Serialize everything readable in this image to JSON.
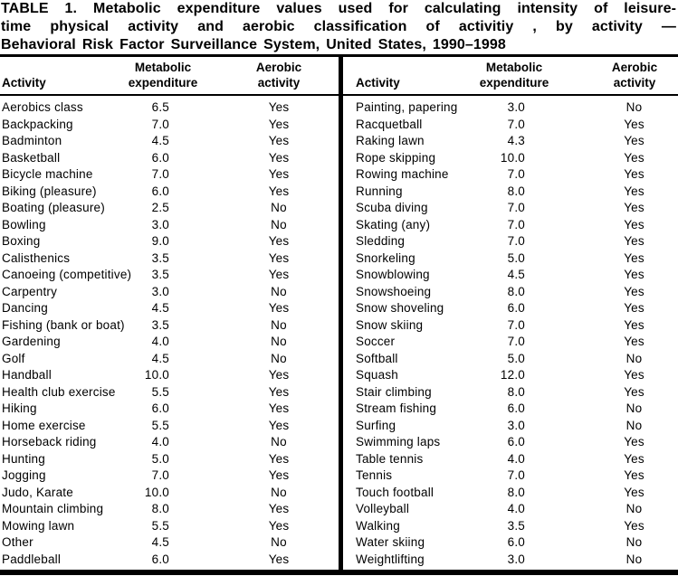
{
  "title": {
    "line1": "TABLE 1. Metabolic expenditure values used for calculating intensity of leisure-",
    "line2": "time physical activity and aerobic classification of activitiy , by activity —",
    "line3": "Behavioral Risk Factor Surveillance System, United States, 1990–1998"
  },
  "colors": {
    "text": "#000000",
    "background": "#ffffff",
    "rules": "#000000"
  },
  "table": {
    "header_activity": "Activity",
    "header_metabolic": "Metabolic expenditure",
    "header_aerobic": "Aerobic activity",
    "left_rows": [
      {
        "activity": "Aerobics class",
        "metabolic": "6.5",
        "aerobic": "Yes"
      },
      {
        "activity": "Backpacking",
        "metabolic": "7.0",
        "aerobic": "Yes"
      },
      {
        "activity": "Badminton",
        "metabolic": "4.5",
        "aerobic": "Yes"
      },
      {
        "activity": "Basketball",
        "metabolic": "6.0",
        "aerobic": "Yes"
      },
      {
        "activity": "Bicycle machine",
        "metabolic": "7.0",
        "aerobic": "Yes"
      },
      {
        "activity": "Biking (pleasure)",
        "metabolic": "6.0",
        "aerobic": "Yes"
      },
      {
        "activity": "Boating (pleasure)",
        "metabolic": "2.5",
        "aerobic": "No"
      },
      {
        "activity": "Bowling",
        "metabolic": "3.0",
        "aerobic": "No"
      },
      {
        "activity": "Boxing",
        "metabolic": "9.0",
        "aerobic": "Yes"
      },
      {
        "activity": "Calisthenics",
        "metabolic": "3.5",
        "aerobic": "Yes"
      },
      {
        "activity": "Canoeing (competitive)",
        "metabolic": "3.5",
        "aerobic": "Yes"
      },
      {
        "activity": "Carpentry",
        "metabolic": "3.0",
        "aerobic": "No"
      },
      {
        "activity": "Dancing",
        "metabolic": "4.5",
        "aerobic": "Yes"
      },
      {
        "activity": "Fishing (bank or boat)",
        "metabolic": "3.5",
        "aerobic": "No"
      },
      {
        "activity": "Gardening",
        "metabolic": "4.0",
        "aerobic": "No"
      },
      {
        "activity": "Golf",
        "metabolic": "4.5",
        "aerobic": "No"
      },
      {
        "activity": "Handball",
        "metabolic": "10.0",
        "aerobic": "Yes"
      },
      {
        "activity": "Health club exercise",
        "metabolic": "5.5",
        "aerobic": "Yes"
      },
      {
        "activity": "Hiking",
        "metabolic": "6.0",
        "aerobic": "Yes"
      },
      {
        "activity": "Home exercise",
        "metabolic": "5.5",
        "aerobic": "Yes"
      },
      {
        "activity": "Horseback riding",
        "metabolic": "4.0",
        "aerobic": "No"
      },
      {
        "activity": "Hunting",
        "metabolic": "5.0",
        "aerobic": "Yes"
      },
      {
        "activity": "Jogging",
        "metabolic": "7.0",
        "aerobic": "Yes"
      },
      {
        "activity": "Judo, Karate",
        "metabolic": "10.0",
        "aerobic": "No"
      },
      {
        "activity": "Mountain climbing",
        "metabolic": "8.0",
        "aerobic": "Yes"
      },
      {
        "activity": "Mowing lawn",
        "metabolic": "5.5",
        "aerobic": "Yes"
      },
      {
        "activity": "Other",
        "metabolic": "4.5",
        "aerobic": "No"
      },
      {
        "activity": "Paddleball",
        "metabolic": "6.0",
        "aerobic": "Yes"
      }
    ],
    "right_rows": [
      {
        "activity": "Painting, papering",
        "metabolic": "3.0",
        "aerobic": "No"
      },
      {
        "activity": "Racquetball",
        "metabolic": "7.0",
        "aerobic": "Yes"
      },
      {
        "activity": "Raking lawn",
        "metabolic": "4.3",
        "aerobic": "Yes"
      },
      {
        "activity": "Rope skipping",
        "metabolic": "10.0",
        "aerobic": "Yes"
      },
      {
        "activity": "Rowing machine",
        "metabolic": "7.0",
        "aerobic": "Yes"
      },
      {
        "activity": "Running",
        "metabolic": "8.0",
        "aerobic": "Yes"
      },
      {
        "activity": "Scuba diving",
        "metabolic": "7.0",
        "aerobic": "Yes"
      },
      {
        "activity": "Skating (any)",
        "metabolic": "7.0",
        "aerobic": "Yes"
      },
      {
        "activity": "Sledding",
        "metabolic": "7.0",
        "aerobic": "Yes"
      },
      {
        "activity": "Snorkeling",
        "metabolic": "5.0",
        "aerobic": "Yes"
      },
      {
        "activity": "Snowblowing",
        "metabolic": "4.5",
        "aerobic": "Yes"
      },
      {
        "activity": "Snowshoeing",
        "metabolic": "8.0",
        "aerobic": "Yes"
      },
      {
        "activity": "Snow shoveling",
        "metabolic": "6.0",
        "aerobic": "Yes"
      },
      {
        "activity": "Snow skiing",
        "metabolic": "7.0",
        "aerobic": "Yes"
      },
      {
        "activity": "Soccer",
        "metabolic": "7.0",
        "aerobic": "Yes"
      },
      {
        "activity": "Softball",
        "metabolic": "5.0",
        "aerobic": "No"
      },
      {
        "activity": "Squash",
        "metabolic": "12.0",
        "aerobic": "Yes"
      },
      {
        "activity": "Stair climbing",
        "metabolic": "8.0",
        "aerobic": "Yes"
      },
      {
        "activity": "Stream fishing",
        "metabolic": "6.0",
        "aerobic": "No"
      },
      {
        "activity": "Surfing",
        "metabolic": "3.0",
        "aerobic": "No"
      },
      {
        "activity": "Swimming laps",
        "metabolic": "6.0",
        "aerobic": "Yes"
      },
      {
        "activity": "Table tennis",
        "metabolic": "4.0",
        "aerobic": "Yes"
      },
      {
        "activity": "Tennis",
        "metabolic": "7.0",
        "aerobic": "Yes"
      },
      {
        "activity": "Touch football",
        "metabolic": "8.0",
        "aerobic": "Yes"
      },
      {
        "activity": "Volleyball",
        "metabolic": "4.0",
        "aerobic": "No"
      },
      {
        "activity": "Walking",
        "metabolic": "3.5",
        "aerobic": "Yes"
      },
      {
        "activity": "Water skiing",
        "metabolic": "6.0",
        "aerobic": "No"
      },
      {
        "activity": "Weightlifting",
        "metabolic": "3.0",
        "aerobic": "No"
      }
    ]
  }
}
